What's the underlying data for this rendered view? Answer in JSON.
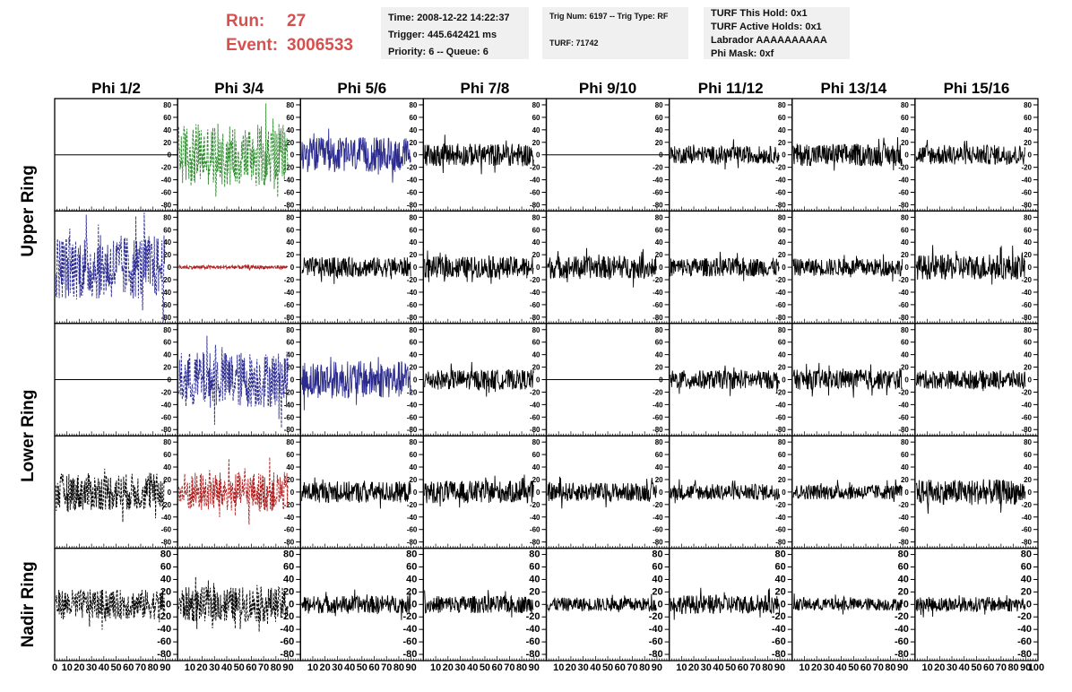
{
  "run_info": {
    "run_label": "Run:",
    "run_value": "27",
    "event_label": "Event:",
    "event_value": "3006533"
  },
  "info_box_1": {
    "line1": "Time: 2008-12-22 14:22:37",
    "line2": "Trigger: 445.642421 ms",
    "line3": "Priority: 6 -- Queue: 6"
  },
  "info_box_2": {
    "line1": "Trig Num: 6197 -- Trig Type: RF",
    "line2": "TURF: 71742"
  },
  "info_box_3": {
    "line1": "TURF This Hold: 0x1",
    "line2": "TURF Active Holds: 0x1",
    "line3": "Labrador AAAAAAAAAA",
    "line4": "Phi Mask: 0xf"
  },
  "colors": {
    "black": "#000000",
    "green": "#2e8b2e",
    "blue": "#2b2b8f",
    "red": "#b02020"
  },
  "chart_data": {
    "type": "line",
    "column_labels": [
      "Phi 1/2",
      "Phi 3/4",
      "Phi 5/6",
      "Phi 7/8",
      "Phi 9/10",
      "Phi 11/12",
      "Phi 13/14",
      "Phi 15/16"
    ],
    "ring_labels": [
      "Upper Ring",
      "Lower Ring",
      "Nadir Ring"
    ],
    "ylim": [
      -90,
      90
    ],
    "y_tick_labels": [
      "80",
      "60",
      "40",
      "20",
      "0",
      "-20",
      "-40",
      "-60",
      "-80"
    ],
    "y_tick_values": [
      80,
      60,
      40,
      20,
      0,
      -20,
      -40,
      -60,
      -80
    ],
    "xlim": [
      0,
      100
    ],
    "x_tick_labels": [
      "10",
      "20",
      "30",
      "40",
      "50",
      "60",
      "70",
      "80",
      "90"
    ],
    "x_tick_values": [
      10,
      20,
      30,
      40,
      50,
      60,
      70,
      80,
      90
    ],
    "x_axis_first_label": "0",
    "x_axis_last_label": "100",
    "panels": [
      [
        "flat",
        "green",
        "blue",
        "black",
        "flat",
        "black",
        "black",
        "black"
      ],
      [
        "blue",
        "red-small",
        "black",
        "black",
        "black",
        "black",
        "black",
        "black"
      ],
      [
        "flat",
        "blue",
        "blue",
        "black",
        "flat",
        "black",
        "black",
        "black"
      ],
      [
        "black-dashed",
        "red",
        "black",
        "black",
        "black",
        "black",
        "black",
        "black"
      ],
      [
        "black-dashed",
        "black-dashed",
        "black",
        "black",
        "black",
        "black",
        "black",
        "black"
      ]
    ],
    "panel_amplitudes": [
      [
        0,
        50,
        28,
        18,
        0,
        14,
        18,
        16
      ],
      [
        52,
        3,
        16,
        17,
        18,
        15,
        14,
        20
      ],
      [
        0,
        45,
        30,
        16,
        0,
        15,
        16,
        15
      ],
      [
        30,
        32,
        17,
        18,
        15,
        13,
        12,
        20
      ],
      [
        24,
        28,
        14,
        14,
        11,
        15,
        10,
        12
      ]
    ]
  }
}
